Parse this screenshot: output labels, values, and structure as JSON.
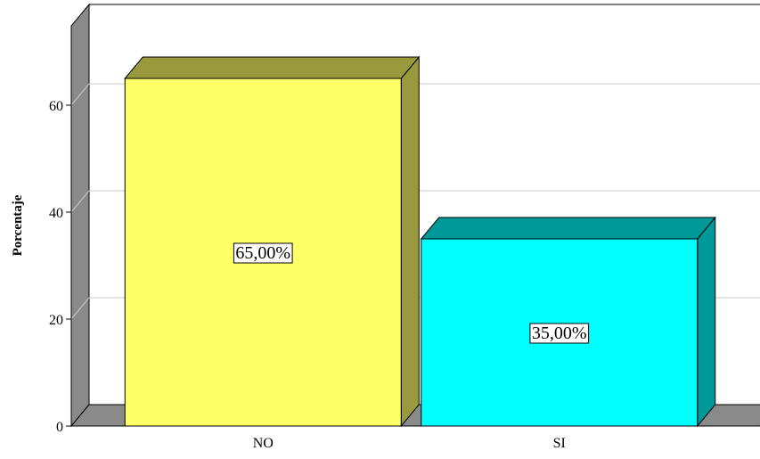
{
  "chart_data": {
    "type": "bar",
    "title": "",
    "xlabel": "",
    "ylabel": "Porcentaje",
    "categories": [
      "NO",
      "SI"
    ],
    "values": [
      65,
      35
    ],
    "data_labels": [
      "65,00%",
      "35,00%"
    ],
    "colors": [
      "#ffff66",
      "#00ffff"
    ],
    "ylim": [
      0,
      70
    ],
    "yticks": [
      0,
      20,
      40,
      60
    ],
    "ytick_labels": [
      "0",
      "20",
      "40",
      "60"
    ],
    "grid": true,
    "style": "3d"
  }
}
